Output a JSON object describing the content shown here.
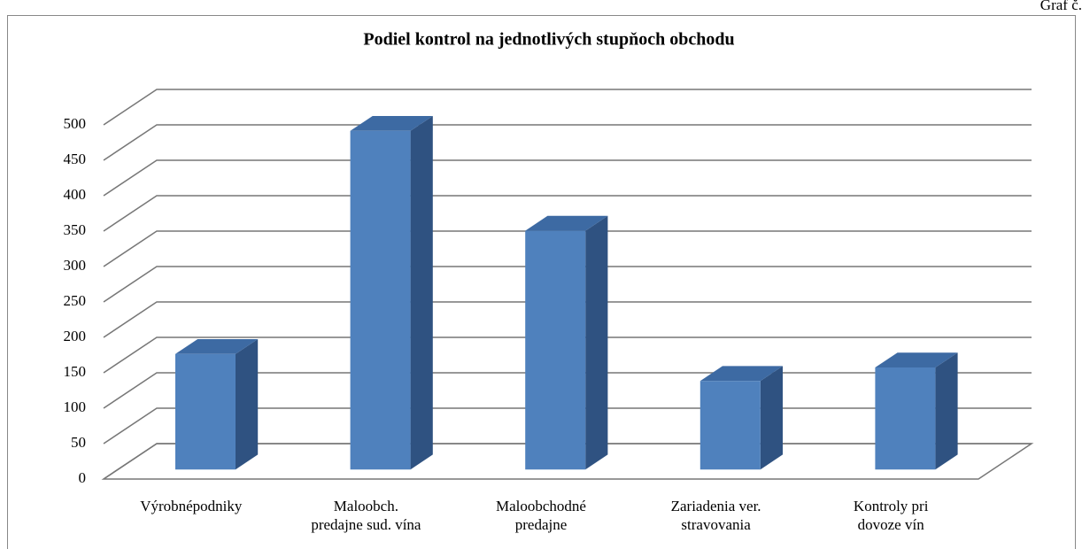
{
  "page_label": "Graf č.",
  "chart_data": {
    "type": "bar3d",
    "title": "Podiel kontrol na jednotlivých stupňoch obchodu",
    "categories": [
      "Výrobnépodniky",
      "Maloobch.\npredajne sud. vína",
      "Maloobchodné\npredajne",
      "Zariadenia ver.\nstravovania",
      "Kontroly pri\ndovoze vín"
    ],
    "values": [
      163,
      478,
      337,
      125,
      144
    ],
    "color": "#4f81bd",
    "side_color": "#2f5281",
    "top_color": "#3d6aa3",
    "ylim": [
      0,
      500
    ],
    "yticks": [
      0,
      50,
      100,
      150,
      200,
      250,
      300,
      350,
      400,
      450,
      500
    ],
    "grid": true
  }
}
